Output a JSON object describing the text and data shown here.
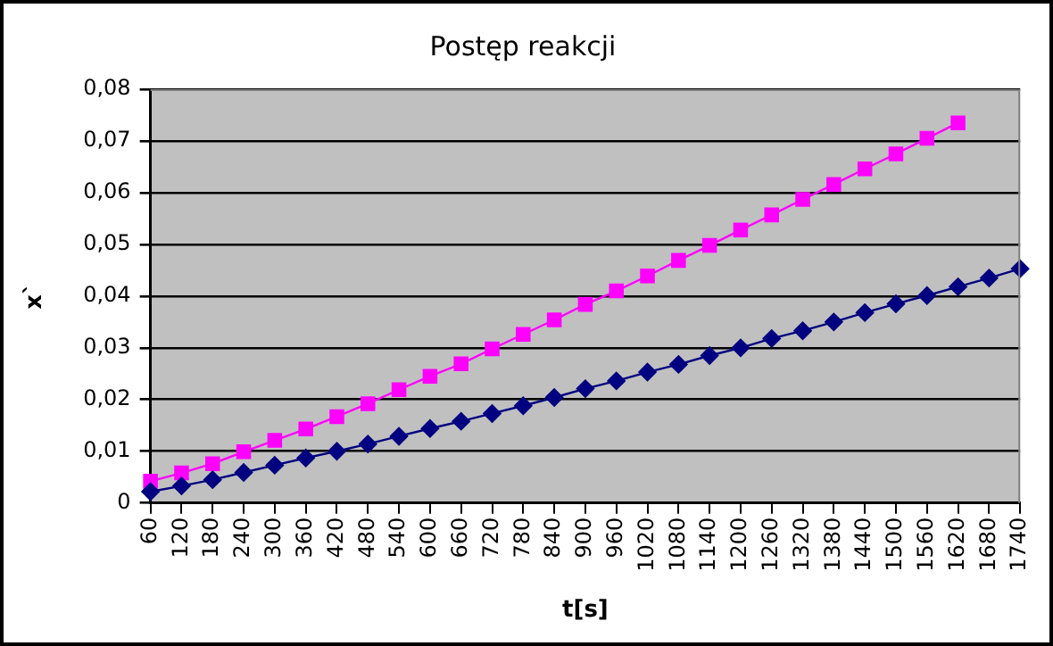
{
  "chart_data": {
    "type": "line",
    "title": "Postęp reakcji",
    "xlabel": "t[s]",
    "ylabel": "x`",
    "categories": [
      "60",
      "120",
      "180",
      "240",
      "300",
      "360",
      "420",
      "480",
      "540",
      "600",
      "660",
      "720",
      "780",
      "840",
      "900",
      "960",
      "1020",
      "1080",
      "1140",
      "1200",
      "1260",
      "1320",
      "1380",
      "1440",
      "1500",
      "1560",
      "1620",
      "1680",
      "1740"
    ],
    "series": [
      {
        "color": "#000080",
        "marker": "diamond",
        "values": [
          0.0022,
          0.0033,
          0.0045,
          0.0059,
          0.0073,
          0.0087,
          0.01,
          0.0114,
          0.0129,
          0.0144,
          0.0158,
          0.0173,
          0.0188,
          0.0204,
          0.0221,
          0.0236,
          0.0253,
          0.0268,
          0.0285,
          0.03,
          0.0318,
          0.0333,
          0.035,
          0.0368,
          0.0385,
          0.0401,
          0.0418,
          0.0435,
          0.0453
        ]
      },
      {
        "color": "#ff00ff",
        "marker": "square",
        "values": [
          0.0042,
          0.0058,
          0.0076,
          0.0099,
          0.0121,
          0.0143,
          0.0167,
          0.0192,
          0.0219,
          0.0245,
          0.0269,
          0.0298,
          0.0326,
          0.0354,
          0.0384,
          0.041,
          0.0439,
          0.0469,
          0.0498,
          0.0528,
          0.0557,
          0.0587,
          0.0616,
          0.0646,
          0.0675,
          0.0705,
          0.0735,
          null,
          null
        ]
      }
    ],
    "ylim": [
      0,
      0.08
    ],
    "yticks": [
      0,
      {
        "value": 0.01,
        "label": "0,01"
      },
      {
        "value": 0.02,
        "label": "0,02"
      },
      {
        "value": 0.03,
        "label": "0,03"
      },
      {
        "value": 0.04,
        "label": "0,04"
      },
      {
        "value": 0.05,
        "label": "0,05"
      },
      {
        "value": 0.06,
        "label": "0,06"
      },
      {
        "value": 0.07,
        "label": "0,07"
      },
      {
        "value": 0.08,
        "label": "0,08"
      }
    ],
    "grid": "y",
    "legend": false,
    "line_style": "solid"
  }
}
